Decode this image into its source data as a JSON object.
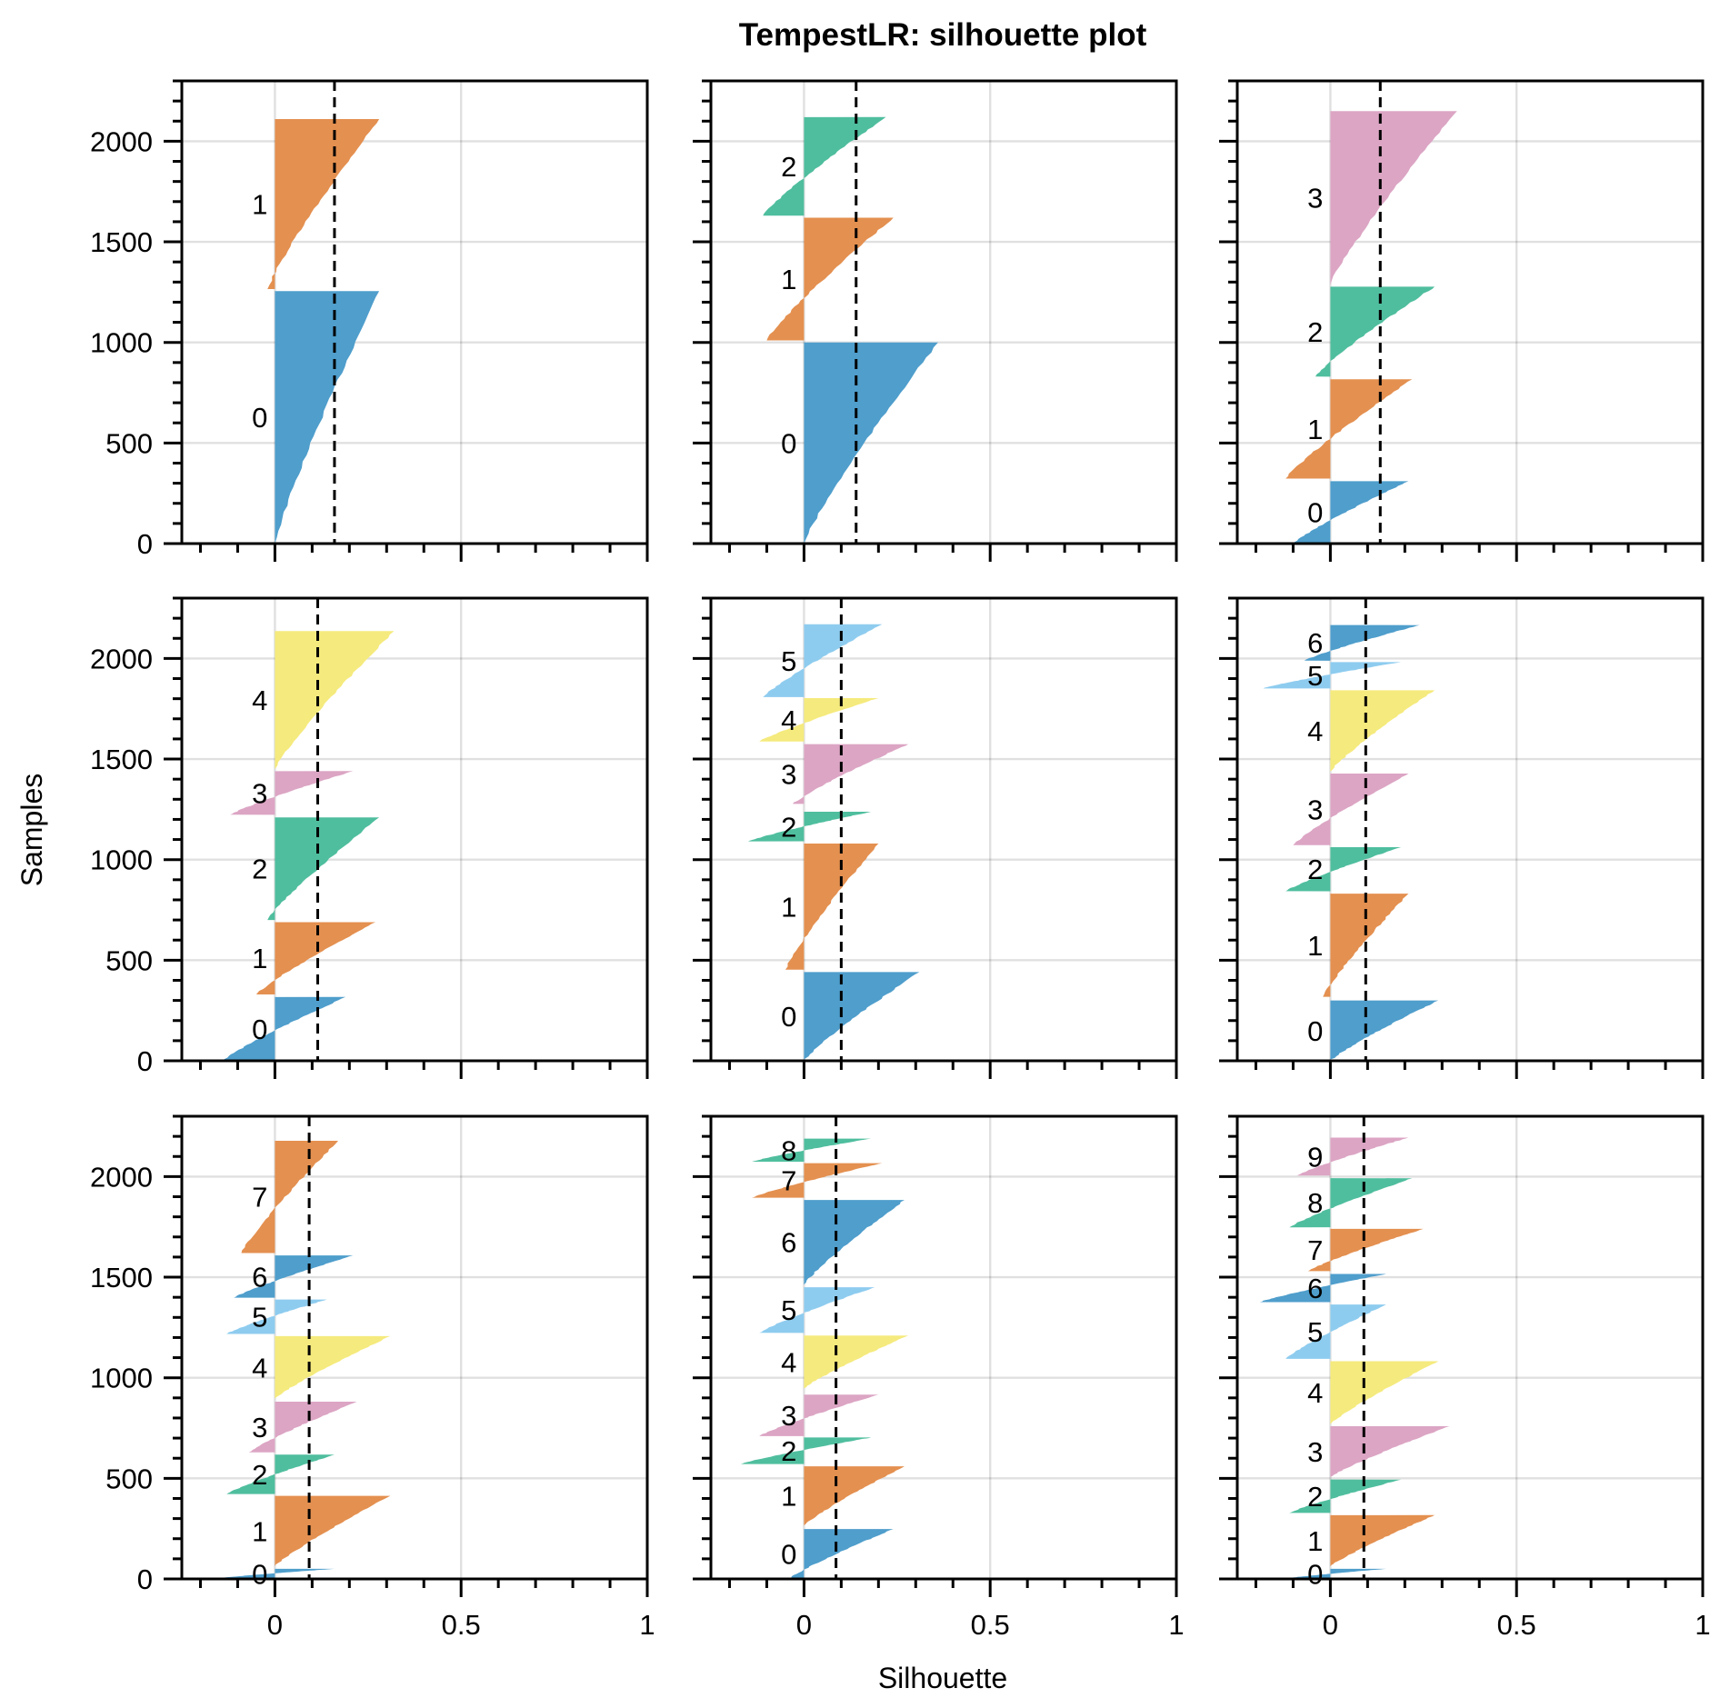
{
  "chart_data": {
    "type": "area",
    "title": "TempestLR: silhouette plot",
    "xlabel": "Silhouette",
    "ylabel": "Samples",
    "xlim": [
      -0.25,
      1
    ],
    "ylim": [
      0,
      2300
    ],
    "xticks": [
      0,
      0.5,
      1
    ],
    "xtick_labels": [
      "0",
      "0.5",
      "1"
    ],
    "yticks": [
      0,
      500,
      1000,
      1500,
      2000
    ],
    "ytick_labels": [
      "0",
      "500",
      "1000",
      "1500",
      "2000"
    ],
    "grid": true,
    "layout": "3x3 grid of subplots, shared axes",
    "colors": [
      "#4b9ccb",
      "#e38e4c",
      "#4bbd9c",
      "#dba3c3",
      "#f5ea7a",
      "#8ccbef"
    ],
    "mean_line": "dashed black vertical line at average silhouette",
    "panels": [
      {
        "n_clusters": 2,
        "mean": 0.16,
        "clusters": [
          {
            "label": "0",
            "start": 0,
            "end": 1255,
            "min": 0.0,
            "max": 0.28
          },
          {
            "label": "1",
            "start": 1265,
            "end": 2110,
            "min": -0.02,
            "max": 0.28
          }
        ]
      },
      {
        "n_clusters": 3,
        "mean": 0.14,
        "clusters": [
          {
            "label": "0",
            "start": 0,
            "end": 1000,
            "min": 0.0,
            "max": 0.36
          },
          {
            "label": "1",
            "start": 1010,
            "end": 1620,
            "min": -0.1,
            "max": 0.24
          },
          {
            "label": "2",
            "start": 1630,
            "end": 2120,
            "min": -0.11,
            "max": 0.22
          }
        ]
      },
      {
        "n_clusters": 4,
        "mean": 0.134,
        "clusters": [
          {
            "label": "0",
            "start": 0,
            "end": 310,
            "min": -0.1,
            "max": 0.21
          },
          {
            "label": "1",
            "start": 323,
            "end": 817,
            "min": -0.12,
            "max": 0.22
          },
          {
            "label": "2",
            "start": 830,
            "end": 1277,
            "min": -0.04,
            "max": 0.28
          },
          {
            "label": "3",
            "start": 1287,
            "end": 2150,
            "min": 0.0,
            "max": 0.34
          }
        ]
      },
      {
        "n_clusters": 5,
        "mean": 0.115,
        "clusters": [
          {
            "label": "0",
            "start": 0,
            "end": 317,
            "min": -0.14,
            "max": 0.19
          },
          {
            "label": "1",
            "start": 330,
            "end": 689,
            "min": -0.05,
            "max": 0.27
          },
          {
            "label": "2",
            "start": 700,
            "end": 1210,
            "min": -0.02,
            "max": 0.28
          },
          {
            "label": "3",
            "start": 1223,
            "end": 1440,
            "min": -0.12,
            "max": 0.21
          },
          {
            "label": "4",
            "start": 1450,
            "end": 2136,
            "min": 0.0,
            "max": 0.32
          }
        ]
      },
      {
        "n_clusters": 6,
        "mean": 0.1,
        "clusters": [
          {
            "label": "0",
            "start": 0,
            "end": 441,
            "min": 0.0,
            "max": 0.31
          },
          {
            "label": "1",
            "start": 453,
            "end": 1080,
            "min": -0.05,
            "max": 0.2
          },
          {
            "label": "2",
            "start": 1091,
            "end": 1238,
            "min": -0.15,
            "max": 0.18
          },
          {
            "label": "3",
            "start": 1277,
            "end": 1574,
            "min": -0.03,
            "max": 0.28
          },
          {
            "label": "4",
            "start": 1587,
            "end": 1803,
            "min": -0.12,
            "max": 0.2
          },
          {
            "label": "5",
            "start": 1808,
            "end": 2170,
            "min": -0.11,
            "max": 0.21
          }
        ]
      },
      {
        "n_clusters": 7,
        "mean": 0.095,
        "clusters": [
          {
            "label": "0",
            "start": 0,
            "end": 300,
            "min": 0.0,
            "max": 0.29
          },
          {
            "label": "1",
            "start": 318,
            "end": 831,
            "min": -0.02,
            "max": 0.21
          },
          {
            "label": "2",
            "start": 843,
            "end": 1062,
            "min": -0.12,
            "max": 0.19
          },
          {
            "label": "3",
            "start": 1072,
            "end": 1428,
            "min": -0.1,
            "max": 0.21
          },
          {
            "label": "4",
            "start": 1438,
            "end": 1842,
            "min": 0.0,
            "max": 0.28
          },
          {
            "label": "5",
            "start": 1851,
            "end": 1982,
            "min": -0.18,
            "max": 0.19
          },
          {
            "label": "6",
            "start": 1989,
            "end": 2166,
            "min": -0.07,
            "max": 0.24
          }
        ]
      },
      {
        "n_clusters": 8,
        "mean": 0.092,
        "clusters": [
          {
            "label": "0",
            "start": 0,
            "end": 50,
            "min": -0.17,
            "max": 0.16
          },
          {
            "label": "1",
            "start": 62,
            "end": 413,
            "min": 0.0,
            "max": 0.31
          },
          {
            "label": "2",
            "start": 422,
            "end": 618,
            "min": -0.13,
            "max": 0.16
          },
          {
            "label": "3",
            "start": 629,
            "end": 881,
            "min": -0.07,
            "max": 0.22
          },
          {
            "label": "4",
            "start": 896,
            "end": 1207,
            "min": 0.0,
            "max": 0.31
          },
          {
            "label": "5",
            "start": 1218,
            "end": 1389,
            "min": -0.13,
            "max": 0.14
          },
          {
            "label": "6",
            "start": 1398,
            "end": 1608,
            "min": -0.11,
            "max": 0.21
          },
          {
            "label": "7",
            "start": 1620,
            "end": 2178,
            "min": -0.09,
            "max": 0.17
          }
        ]
      },
      {
        "n_clusters": 9,
        "mean": 0.086,
        "clusters": [
          {
            "label": "0",
            "start": 0,
            "end": 248,
            "min": -0.04,
            "max": 0.24
          },
          {
            "label": "1",
            "start": 266,
            "end": 560,
            "min": 0.0,
            "max": 0.27
          },
          {
            "label": "2",
            "start": 571,
            "end": 703,
            "min": -0.17,
            "max": 0.18
          },
          {
            "label": "3",
            "start": 710,
            "end": 916,
            "min": -0.12,
            "max": 0.2
          },
          {
            "label": "4",
            "start": 947,
            "end": 1210,
            "min": 0.0,
            "max": 0.28
          },
          {
            "label": "5",
            "start": 1223,
            "end": 1450,
            "min": -0.12,
            "max": 0.19
          },
          {
            "label": "6",
            "start": 1463,
            "end": 1884,
            "min": 0.0,
            "max": 0.27
          },
          {
            "label": "7",
            "start": 1895,
            "end": 2067,
            "min": -0.14,
            "max": 0.21
          },
          {
            "label": "8",
            "start": 2074,
            "end": 2189,
            "min": -0.14,
            "max": 0.18
          }
        ]
      },
      {
        "n_clusters": 10,
        "mean": 0.09,
        "clusters": [
          {
            "label": "0",
            "start": 0,
            "end": 50,
            "min": -0.13,
            "max": 0.15
          },
          {
            "label": "1",
            "start": 62,
            "end": 317,
            "min": 0.0,
            "max": 0.28
          },
          {
            "label": "2",
            "start": 328,
            "end": 494,
            "min": -0.11,
            "max": 0.19
          },
          {
            "label": "3",
            "start": 506,
            "end": 759,
            "min": 0.0,
            "max": 0.32
          },
          {
            "label": "4",
            "start": 769,
            "end": 1082,
            "min": 0.0,
            "max": 0.29
          },
          {
            "label": "5",
            "start": 1094,
            "end": 1364,
            "min": -0.12,
            "max": 0.15
          },
          {
            "label": "6",
            "start": 1376,
            "end": 1516,
            "min": -0.19,
            "max": 0.15
          },
          {
            "label": "7",
            "start": 1530,
            "end": 1740,
            "min": -0.06,
            "max": 0.25
          },
          {
            "label": "8",
            "start": 1748,
            "end": 1992,
            "min": -0.11,
            "max": 0.22
          },
          {
            "label": "9",
            "start": 2005,
            "end": 2194,
            "min": -0.09,
            "max": 0.21
          }
        ]
      }
    ]
  }
}
